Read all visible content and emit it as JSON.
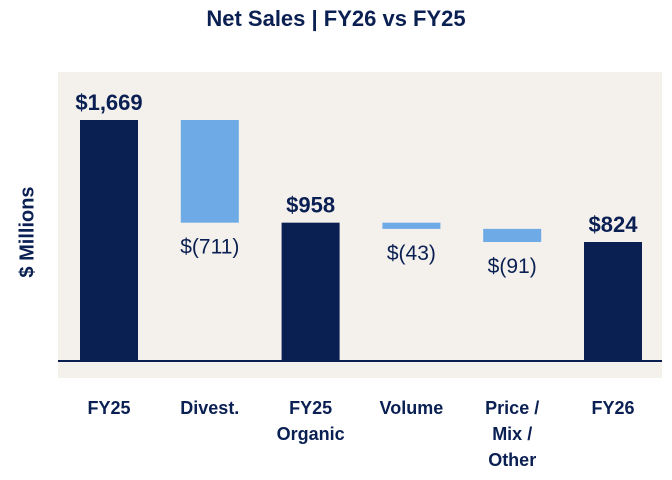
{
  "chart_data": {
    "type": "waterfall",
    "title": "Net Sales | FY26 vs FY25",
    "ylabel": "$ Millions",
    "xlabel": "",
    "categories": [
      "FY25",
      "Divest.",
      "FY25 Organic",
      "Volume",
      "Price / Mix / Other",
      "FY26"
    ],
    "category_lines": [
      [
        "FY25"
      ],
      [
        "Divest."
      ],
      [
        "FY25",
        "Organic"
      ],
      [
        "Volume"
      ],
      [
        "Price /",
        "Mix /",
        "Other"
      ],
      [
        "FY26"
      ]
    ],
    "values": [
      1669,
      -711,
      958,
      -43,
      -91,
      824
    ],
    "kinds": [
      "total",
      "delta",
      "total",
      "delta",
      "delta",
      "total"
    ],
    "data_labels": [
      "$1,669",
      "$(711)",
      "$958",
      "$(43)",
      "$(91)",
      "$824"
    ],
    "ylim": [
      0,
      1669
    ],
    "grid": false,
    "colors": {
      "total": "#0a1f52",
      "delta": "#6eaae6",
      "plot_bg": "#f4f1ed",
      "axis": "#0a1f52"
    }
  }
}
